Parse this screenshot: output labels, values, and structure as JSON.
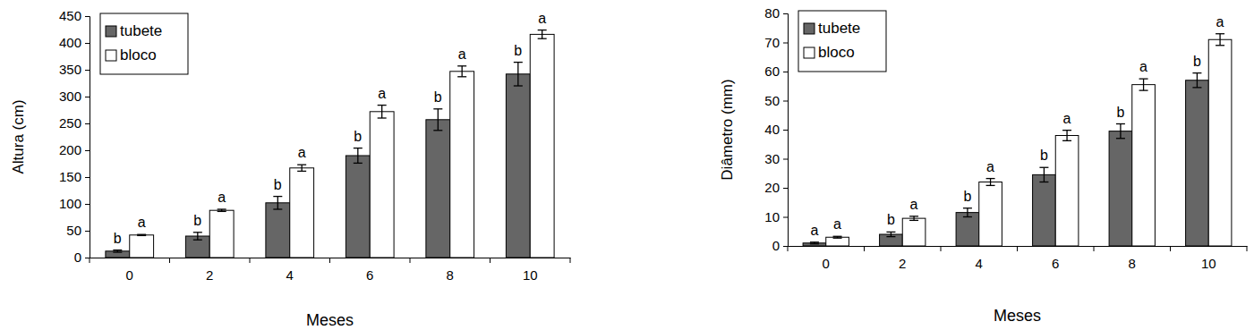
{
  "chart_data": [
    {
      "type": "bar",
      "x_label": "Meses",
      "y_label": "Altura (cm)",
      "categories": [
        "0",
        "2",
        "4",
        "6",
        "8",
        "10"
      ],
      "ylim": [
        0,
        450
      ],
      "yticks": [
        0,
        50,
        100,
        150,
        200,
        250,
        300,
        350,
        400,
        450
      ],
      "legend": "top-left",
      "series": [
        {
          "name": "tubete",
          "color": "#666666",
          "values": [
            12,
            40,
            102,
            190,
            257,
            342
          ],
          "errors": [
            2,
            7,
            12,
            14,
            20,
            22
          ],
          "annotations": [
            "b",
            "b",
            "b",
            "b",
            "b",
            "b"
          ]
        },
        {
          "name": "bloco",
          "color": "#ffffff",
          "values": [
            42,
            88,
            167,
            272,
            347,
            416
          ],
          "errors": [
            1,
            2,
            6,
            12,
            10,
            8
          ],
          "annotations": [
            "a",
            "a",
            "a",
            "a",
            "a",
            "a"
          ]
        }
      ]
    },
    {
      "type": "bar",
      "x_label": "Meses",
      "y_label": "Diâmetro (mm)",
      "categories": [
        "0",
        "2",
        "4",
        "6",
        "8",
        "10"
      ],
      "ylim": [
        0,
        80
      ],
      "yticks": [
        0,
        10,
        20,
        30,
        40,
        50,
        60,
        70,
        80
      ],
      "legend": "top-left",
      "series": [
        {
          "name": "tubete",
          "color": "#666666",
          "values": [
            1,
            4,
            11.5,
            24.5,
            39.5,
            57
          ],
          "errors": [
            0.3,
            0.8,
            1.5,
            2.5,
            2.5,
            2.5
          ],
          "annotations": [
            "a",
            "b",
            "b",
            "b",
            "b",
            "b"
          ]
        },
        {
          "name": "bloco",
          "color": "#ffffff",
          "values": [
            3,
            9.5,
            22,
            38,
            55.5,
            71
          ],
          "errors": [
            0.3,
            0.7,
            1.2,
            1.8,
            2,
            2
          ],
          "annotations": [
            "a",
            "a",
            "a",
            "a",
            "a",
            "a"
          ]
        }
      ]
    }
  ]
}
